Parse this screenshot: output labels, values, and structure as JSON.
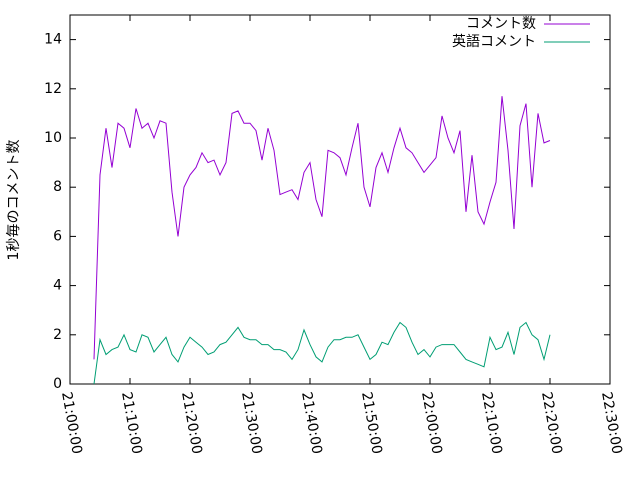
{
  "chart_data": {
    "type": "line",
    "y_label": "1秒毎のコメント数",
    "x": [
      "21:04:00",
      "21:05:00",
      "21:06:00",
      "21:07:00",
      "21:08:00",
      "21:09:00",
      "21:10:00",
      "21:11:00",
      "21:12:00",
      "21:13:00",
      "21:14:00",
      "21:15:00",
      "21:16:00",
      "21:17:00",
      "21:18:00",
      "21:19:00",
      "21:20:00",
      "21:21:00",
      "21:22:00",
      "21:23:00",
      "21:24:00",
      "21:25:00",
      "21:26:00",
      "21:27:00",
      "21:28:00",
      "21:29:00",
      "21:30:00",
      "21:31:00",
      "21:32:00",
      "21:33:00",
      "21:34:00",
      "21:35:00",
      "21:36:00",
      "21:37:00",
      "21:38:00",
      "21:39:00",
      "21:40:00",
      "21:41:00",
      "21:42:00",
      "21:43:00",
      "21:44:00",
      "21:45:00",
      "21:46:00",
      "21:47:00",
      "21:48:00",
      "21:49:00",
      "21:50:00",
      "21:51:00",
      "21:52:00",
      "21:53:00",
      "21:54:00",
      "21:55:00",
      "21:56:00",
      "21:57:00",
      "21:58:00",
      "21:59:00",
      "22:00:00",
      "22:01:00",
      "22:02:00",
      "22:03:00",
      "22:04:00",
      "22:05:00",
      "22:06:00",
      "22:07:00",
      "22:08:00",
      "22:09:00",
      "22:10:00",
      "22:11:00",
      "22:12:00",
      "22:13:00",
      "22:14:00",
      "22:15:00",
      "22:16:00",
      "22:17:00",
      "22:18:00",
      "22:19:00",
      "22:20:00"
    ],
    "series": [
      {
        "name": "コメント数",
        "color": "#9400d3",
        "values": [
          1.0,
          8.5,
          10.4,
          8.8,
          10.6,
          10.4,
          9.6,
          11.2,
          10.4,
          10.6,
          10.0,
          10.7,
          10.6,
          7.8,
          6.0,
          8.0,
          8.5,
          8.8,
          9.4,
          9.0,
          9.1,
          8.5,
          9.0,
          11.0,
          11.1,
          10.6,
          10.6,
          10.3,
          9.1,
          10.4,
          9.5,
          7.7,
          7.8,
          7.9,
          7.5,
          8.6,
          9.0,
          7.5,
          6.8,
          9.5,
          9.4,
          9.2,
          8.5,
          9.6,
          10.6,
          8.0,
          7.2,
          8.8,
          9.4,
          8.6,
          9.6,
          10.4,
          9.6,
          9.4,
          9.0,
          8.6,
          8.9,
          9.2,
          10.9,
          10.0,
          9.4,
          10.3,
          7.0,
          9.3,
          7.0,
          6.5,
          7.4,
          8.2,
          11.7,
          9.5,
          6.3,
          10.5,
          11.4,
          8.0,
          11.0,
          9.8,
          9.9
        ]
      },
      {
        "name": "英語コメント",
        "color": "#009e73",
        "values": [
          0,
          1.8,
          1.2,
          1.4,
          1.5,
          2.0,
          1.4,
          1.3,
          2.0,
          1.9,
          1.3,
          1.6,
          1.9,
          1.2,
          0.9,
          1.5,
          1.9,
          1.7,
          1.5,
          1.2,
          1.3,
          1.6,
          1.7,
          2.0,
          2.3,
          1.9,
          1.8,
          1.8,
          1.6,
          1.6,
          1.4,
          1.4,
          1.3,
          1.0,
          1.4,
          2.2,
          1.6,
          1.1,
          0.9,
          1.5,
          1.8,
          1.8,
          1.9,
          1.9,
          2.0,
          1.5,
          1.0,
          1.2,
          1.7,
          1.6,
          2.1,
          2.5,
          2.3,
          1.7,
          1.2,
          1.4,
          1.1,
          1.5,
          1.6,
          1.6,
          1.6,
          1.3,
          1.0,
          0.9,
          0.8,
          0.7,
          1.9,
          1.4,
          1.5,
          2.1,
          1.2,
          2.3,
          2.5,
          2.0,
          1.8,
          1.0,
          2.0
        ]
      }
    ],
    "xlim": [
      "21:00:00",
      "22:30:00"
    ],
    "xticks": [
      "21:00:00",
      "21:10:00",
      "21:20:00",
      "21:30:00",
      "21:40:00",
      "21:50:00",
      "22:00:00",
      "22:10:00",
      "22:20:00",
      "22:30:00"
    ],
    "ylim": [
      0,
      15
    ],
    "yticks": [
      0,
      2,
      4,
      6,
      8,
      10,
      12,
      14
    ],
    "legend": "top-right"
  }
}
